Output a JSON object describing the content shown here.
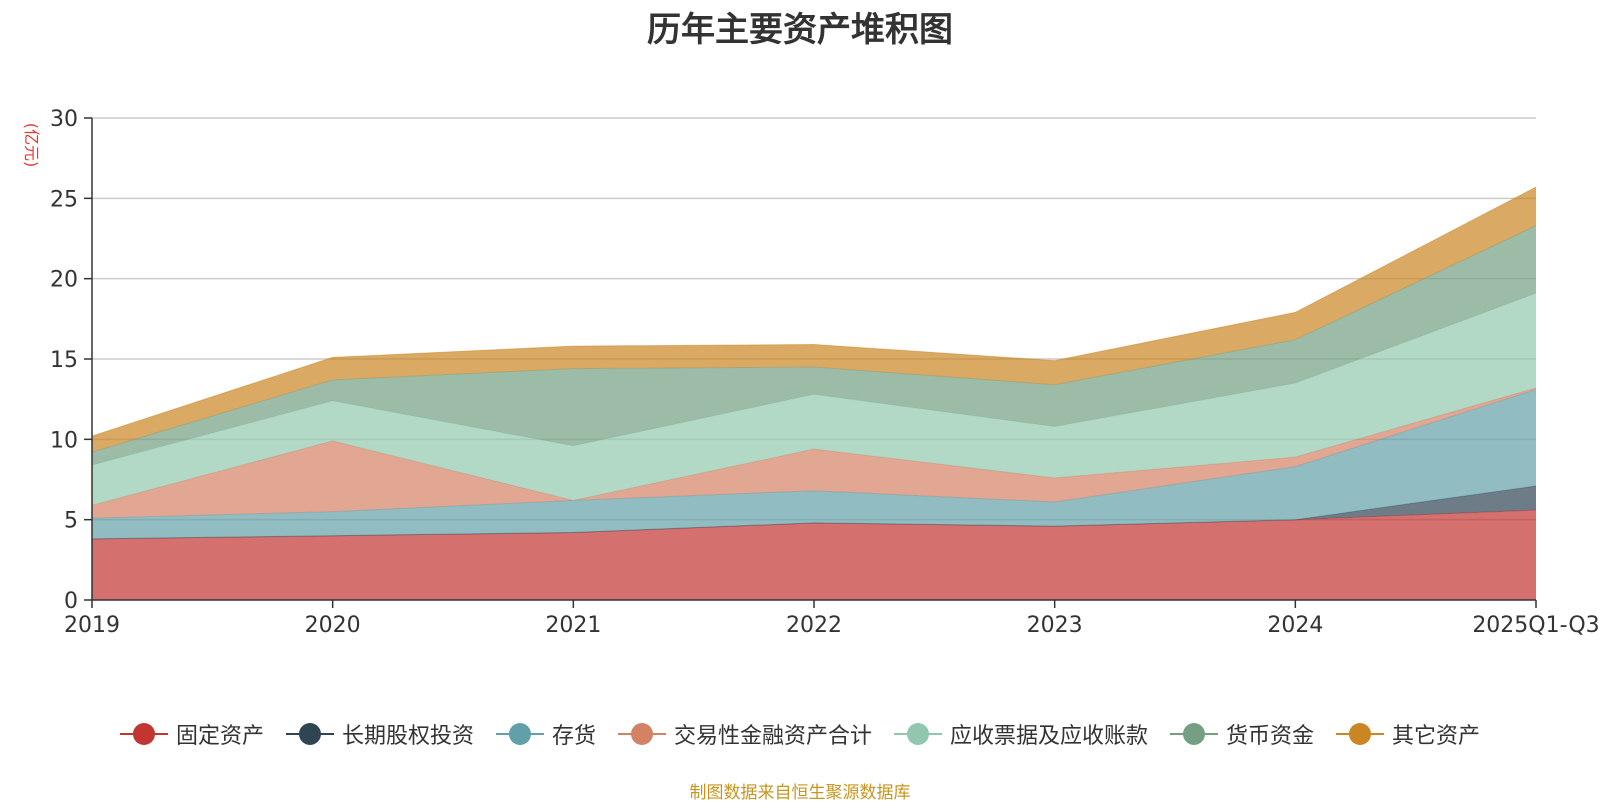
{
  "chart_data": {
    "type": "area",
    "stacked": true,
    "title": "历年主要资产堆积图",
    "unit": "(亿元)",
    "categories": [
      "2019",
      "2020",
      "2021",
      "2022",
      "2023",
      "2024",
      "2025Q1-Q3"
    ],
    "ylim": [
      0,
      30
    ],
    "yticks": [
      0,
      5,
      10,
      15,
      20,
      25,
      30
    ],
    "grid": true,
    "legend_position": "bottom",
    "series": [
      {
        "name": "固定资产",
        "color": "#c23531",
        "values": [
          3.8,
          4.0,
          4.2,
          4.8,
          4.6,
          5.0,
          5.6
        ]
      },
      {
        "name": "长期股权投资",
        "color": "#2f4554",
        "values": [
          0.0,
          0.0,
          0.0,
          0.0,
          0.0,
          0.0,
          1.5
        ]
      },
      {
        "name": "存货",
        "color": "#61a0a8",
        "values": [
          1.3,
          1.5,
          2.0,
          2.0,
          1.5,
          3.3,
          6.0
        ]
      },
      {
        "name": "交易性金融资产合计",
        "color": "#d48265",
        "values": [
          0.8,
          4.4,
          0.0,
          2.6,
          1.5,
          0.6,
          0.1
        ]
      },
      {
        "name": "应收票据及应收账款",
        "color": "#91c7ae",
        "values": [
          2.5,
          2.5,
          3.4,
          3.4,
          3.2,
          4.6,
          5.9
        ]
      },
      {
        "name": "货币资金",
        "color": "#749f83",
        "values": [
          0.8,
          1.3,
          4.8,
          1.7,
          2.6,
          2.7,
          4.2
        ]
      },
      {
        "name": "其它资产",
        "color": "#ca8622",
        "values": [
          1.0,
          1.4,
          1.4,
          1.4,
          1.5,
          1.7,
          2.4
        ]
      }
    ]
  },
  "source_note": "制图数据来自恒生聚源数据库"
}
